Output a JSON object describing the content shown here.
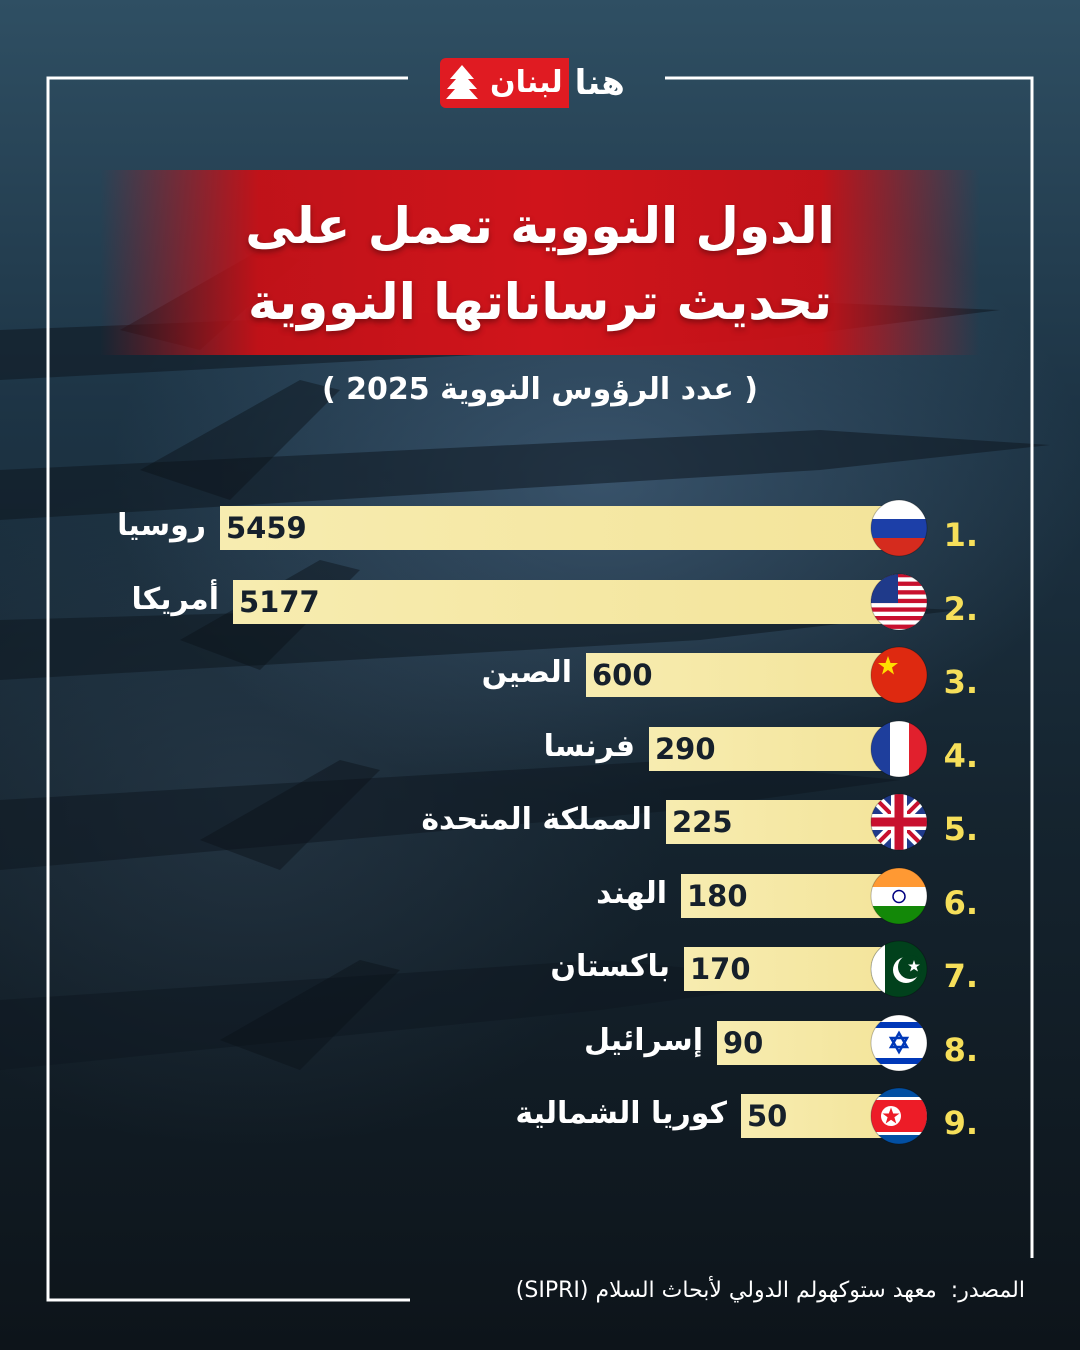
{
  "brand": {
    "logo_red_text": "لبنان",
    "logo_white_text": "هنا"
  },
  "title_line1": "الدول النووية تعمل على",
  "title_line2": "تحديث ترساناتها النووية",
  "subtitle": "( عدد الرؤوس النووية 2025 )",
  "source_label": "المصدر:",
  "source_text": "معهد ستوكهولم الدولي لأبحاث السلام (SIPRI)",
  "colors": {
    "accent_red": "#d0141b",
    "bar_fill": "#f3e49a",
    "rank_yellow": "#f6df5a"
  },
  "chart_data": {
    "type": "bar",
    "orientation": "horizontal",
    "title": "الدول النووية تعمل على تحديث ترساناتها النووية",
    "subtitle": "( عدد الرؤوس النووية 2025 )",
    "categories": [
      "روسيا",
      "أمريكا",
      "الصين",
      "فرنسا",
      "المملكة المتحدة",
      "الهند",
      "باكستان",
      "إسرائيل",
      "كوريا الشمالية"
    ],
    "ranks": [
      "1.",
      "2.",
      "3.",
      "4.",
      "5.",
      "6.",
      "7.",
      "8.",
      "9."
    ],
    "values": [
      5459,
      5177,
      600,
      290,
      225,
      180,
      170,
      90,
      50
    ],
    "flags": [
      "russia-flag-icon",
      "usa-flag-icon",
      "china-flag-icon",
      "france-flag-icon",
      "uk-flag-icon",
      "india-flag-icon",
      "pakistan-flag-icon",
      "israel-flag-icon",
      "north-korea-flag-icon"
    ],
    "grid": false,
    "legend": "none"
  }
}
